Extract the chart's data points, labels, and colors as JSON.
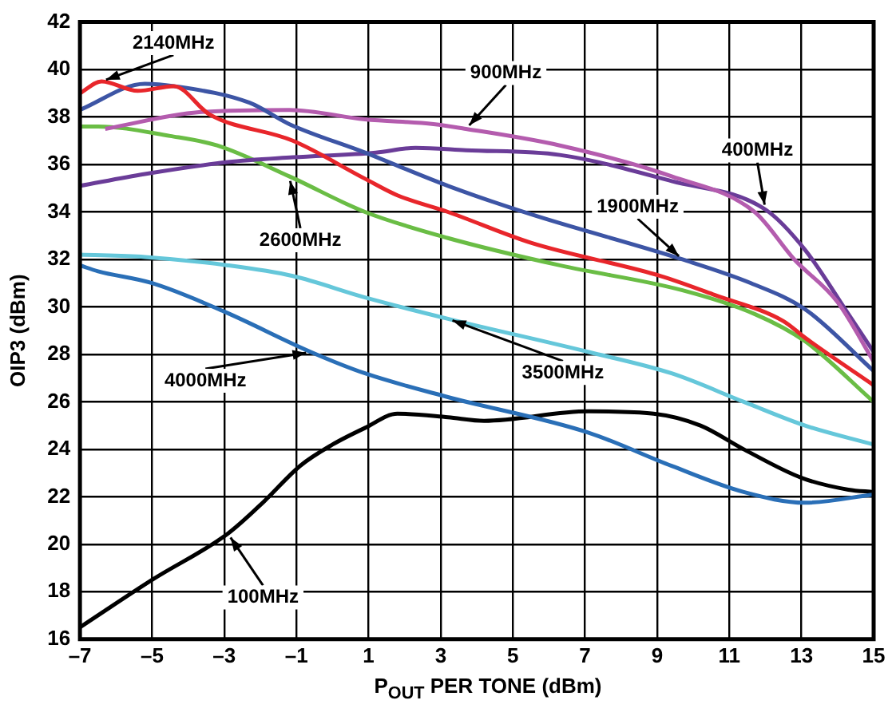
{
  "chart_data": {
    "type": "line",
    "xlabel": "P$_{OUT}$ PER TONE (dBm)",
    "ylabel": "OIP3 (dBm)",
    "xlim": [
      -7,
      15
    ],
    "xticks": [
      {
        "value": -7,
        "label": "–7"
      },
      {
        "value": -5,
        "label": "–5"
      },
      {
        "value": -3,
        "label": "–3"
      },
      {
        "value": -1,
        "label": "–1"
      },
      1,
      3,
      5,
      7,
      9,
      11,
      13,
      15
    ],
    "ylim": [
      16,
      42
    ],
    "yticks": [
      16,
      18,
      20,
      22,
      24,
      26,
      28,
      30,
      32,
      34,
      36,
      38,
      40,
      42
    ],
    "grid": true,
    "legend": false,
    "marker": "none",
    "line_style": "solid",
    "series": [
      {
        "name": "2140MHz",
        "color": "#e8262b",
        "x": [
          -7,
          -6.4,
          -5.4,
          -4.4,
          -3.4,
          -1.1,
          0.9,
          1.8,
          3.2,
          5.5,
          9.1,
          10.6,
          12.5,
          13.1,
          15
        ],
        "values": [
          39.0,
          39.5,
          39.1,
          39.3,
          38.1,
          37.0,
          35.4,
          34.7,
          34.0,
          32.7,
          31.3,
          30.5,
          29.4,
          28.7,
          26.7
        ]
      },
      {
        "name": "1900MHz",
        "color": "#3d55a5",
        "x": [
          -7,
          -5.2,
          -4.4,
          -2.3,
          -1.2,
          0.9,
          3.2,
          5.5,
          9.7,
          11.6,
          13.1,
          15
        ],
        "values": [
          38.3,
          39.4,
          39.3,
          38.6,
          37.7,
          36.5,
          35.1,
          33.9,
          32.0,
          31.0,
          29.9,
          27.3
        ]
      },
      {
        "name": "900MHz",
        "color": "#b45cae",
        "x": [
          -6.3,
          -3.7,
          -1.2,
          0.9,
          2.8,
          3.7,
          6.3,
          9.4,
          11.7,
          12.8,
          14.0,
          15
        ],
        "values": [
          37.5,
          38.2,
          38.3,
          37.9,
          37.7,
          37.5,
          36.8,
          35.5,
          34.0,
          32.0,
          30.2,
          27.7
        ]
      },
      {
        "name": "400MHz",
        "color": "#6a3c98",
        "x": [
          -7,
          -5.2,
          -2.9,
          -1.1,
          1.2,
          2.3,
          3.7,
          6.3,
          9.4,
          12.0,
          13.1,
          14.3,
          15
        ],
        "values": [
          35.1,
          35.6,
          36.1,
          36.3,
          36.5,
          36.7,
          36.6,
          36.4,
          35.3,
          34.1,
          32.4,
          29.7,
          28.1
        ]
      },
      {
        "name": "2600MHz",
        "color": "#6abd45",
        "x": [
          -7,
          -6.5,
          -4.5,
          -3.2,
          -1.2,
          0.9,
          3.2,
          6.3,
          9.7,
          11.7,
          13.1,
          15
        ],
        "values": [
          37.6,
          37.6,
          37.2,
          36.8,
          35.5,
          34.0,
          32.9,
          31.75,
          30.7,
          29.7,
          28.55,
          26.0
        ]
      },
      {
        "name": "3500MHz",
        "color": "#65c7da",
        "x": [
          -7,
          -5.2,
          -2.9,
          -1.1,
          0.9,
          3.2,
          7.1,
          9.4,
          11.4,
          13.1,
          15
        ],
        "values": [
          32.2,
          32.1,
          31.75,
          31.3,
          30.4,
          29.5,
          28.1,
          27.2,
          26.0,
          25.0,
          24.2
        ]
      },
      {
        "name": "4000MHz",
        "color": "#2a6fb7",
        "x": [
          -7,
          -6.5,
          -5,
          -3,
          -0.6,
          0.9,
          3.2,
          7.1,
          9.4,
          11.4,
          13.1,
          15
        ],
        "values": [
          31.75,
          31.5,
          31.0,
          29.8,
          28.1,
          27.2,
          26.2,
          24.7,
          23.3,
          22.2,
          21.75,
          22.1
        ]
      },
      {
        "name": "100MHz",
        "color": "#000000",
        "x": [
          -7,
          -5,
          -2.9,
          -1.9,
          -0.9,
          0,
          0.9,
          1.8,
          3.2,
          4.2,
          7.1,
          8.9,
          10.2,
          11.4,
          13.0,
          14.3,
          15
        ],
        "values": [
          16.5,
          18.5,
          20.45,
          21.8,
          23.3,
          24.2,
          24.9,
          25.5,
          25.35,
          25.2,
          25.6,
          25.5,
          25.0,
          24.0,
          22.8,
          22.3,
          22.2
        ]
      }
    ]
  }
}
